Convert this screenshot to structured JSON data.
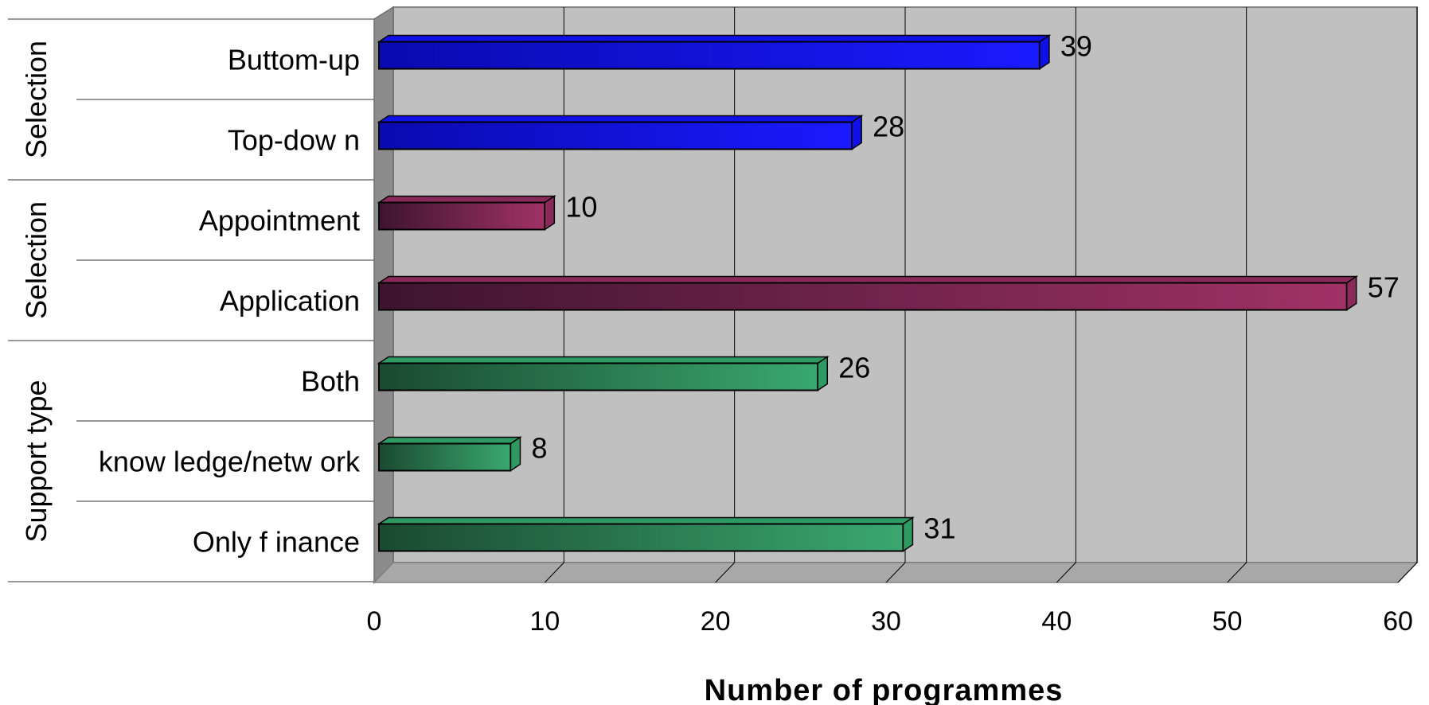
{
  "chart_data": {
    "type": "bar",
    "orientation": "horizontal",
    "title": "",
    "xlabel": "Number of programmes",
    "ylabel": "",
    "xlim": [
      0,
      60
    ],
    "xticks": [
      0,
      10,
      20,
      30,
      40,
      50,
      60
    ],
    "grid": true,
    "legend": "none",
    "categories": [
      "Buttom-up",
      "Top-dow n",
      "Appointment",
      "Application",
      "Both",
      "know ledge/netw ork",
      "Only f inance"
    ],
    "values": [
      39,
      28,
      10,
      57,
      26,
      8,
      31
    ],
    "value_labels": [
      "39",
      "28",
      "10",
      "57",
      "26",
      "8",
      "31"
    ],
    "groups": [
      {
        "label": "Selection",
        "count": 2,
        "color": "#1010e8"
      },
      {
        "label": "Selection",
        "count": 2,
        "color": "#8a2a5a"
      },
      {
        "label": "Support type",
        "count": 3,
        "color": "#2e9a62"
      }
    ]
  }
}
